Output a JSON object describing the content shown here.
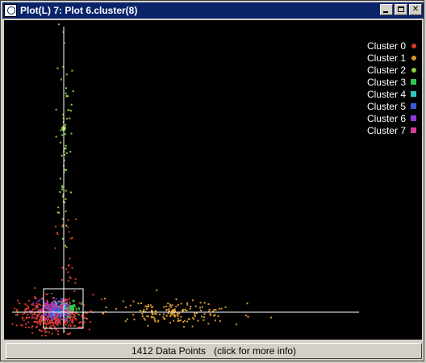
{
  "window": {
    "title": "Plot(L) 7: Plot 6.cluster(8)",
    "buttons": {
      "minimize": "minimize",
      "maximize": "maximize",
      "close": "✕"
    }
  },
  "status_bar": {
    "text": "1412 Data Points   (click for more info)"
  },
  "chart_data": {
    "type": "scatter",
    "title": "",
    "xlabel": "",
    "ylabel": "",
    "grid": false,
    "legend": "top-right",
    "series": [
      {
        "name": "Cluster 0",
        "color": "#d83a2a"
      },
      {
        "name": "Cluster 1",
        "color": "#d89a2a"
      },
      {
        "name": "Cluster 2",
        "color": "#8ad044"
      },
      {
        "name": "Cluster 3",
        "color": "#2ec84a"
      },
      {
        "name": "Cluster 4",
        "color": "#2ec8c0"
      },
      {
        "name": "Cluster 5",
        "color": "#3a5ad8"
      },
      {
        "name": "Cluster 6",
        "color": "#8a3ad8"
      },
      {
        "name": "Cluster 7",
        "color": "#d83a9a"
      }
    ]
  }
}
